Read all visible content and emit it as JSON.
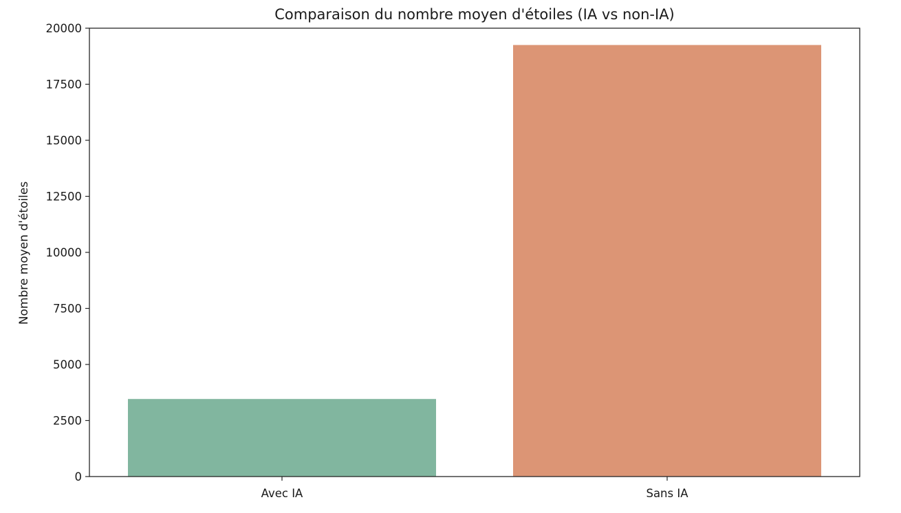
{
  "chart_data": {
    "type": "bar",
    "title": "Comparaison du nombre moyen d'étoiles (IA vs non-IA)",
    "xlabel": "",
    "ylabel": "Nombre moyen d'étoiles",
    "categories": [
      "Avec IA",
      "Sans IA"
    ],
    "values": [
      3460,
      19250
    ],
    "colors": [
      "#81b69f",
      "#dc9575"
    ],
    "ylim": [
      0,
      20000
    ],
    "yticks": [
      0,
      2500,
      5000,
      7500,
      10000,
      12500,
      15000,
      17500,
      20000
    ],
    "grid": false,
    "legend": false
  }
}
